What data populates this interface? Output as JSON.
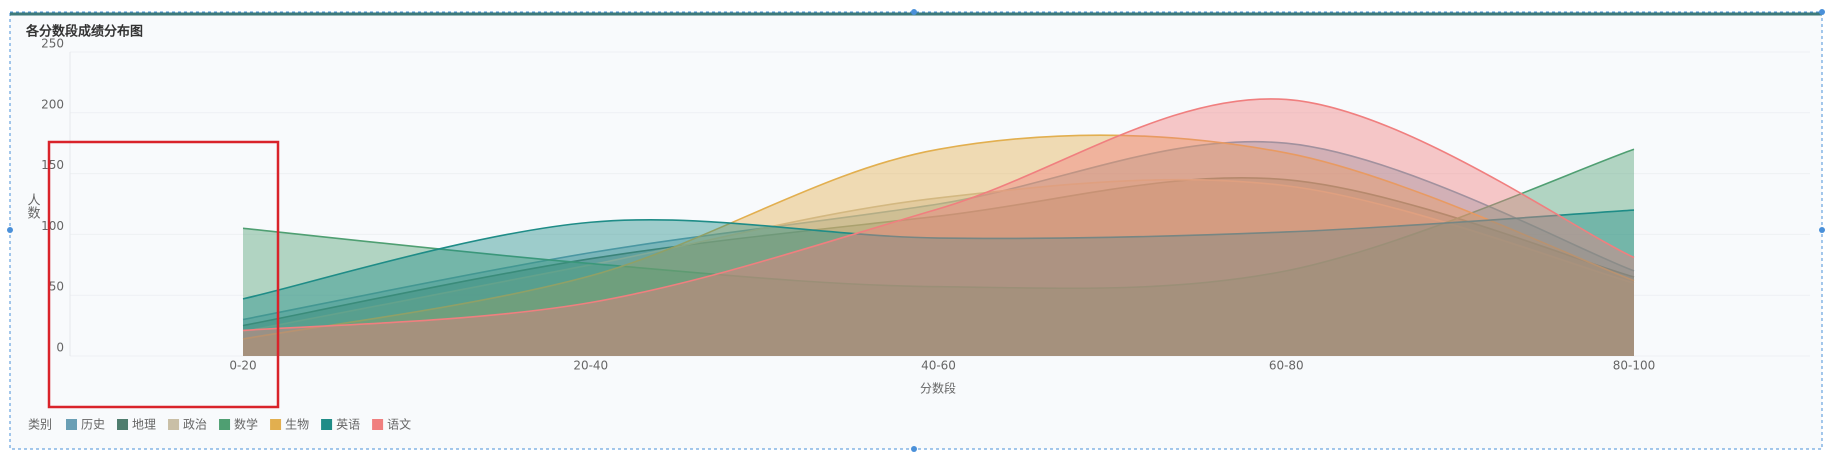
{
  "chart_data": {
    "type": "area",
    "title": "各分数段成绩分布图",
    "x_label": "分数段",
    "y_label": "人数",
    "legend_title": "类别",
    "categories": [
      "0-20",
      "20-40",
      "40-60",
      "60-80",
      "80-100"
    ],
    "series": [
      {
        "name": "历史",
        "color": "#6a9fb5",
        "values": [
          30,
          85,
          125,
          175,
          70
        ]
      },
      {
        "name": "地理",
        "color": "#4e7d6e",
        "values": [
          25,
          80,
          115,
          145,
          65
        ]
      },
      {
        "name": "政治",
        "color": "#c9bfa6",
        "values": [
          20,
          75,
          130,
          140,
          60
        ]
      },
      {
        "name": "数学",
        "color": "#4f9f72",
        "values": [
          105,
          76,
          57,
          70,
          170
        ]
      },
      {
        "name": "生物",
        "color": "#e2af4f",
        "values": [
          14,
          66,
          170,
          167,
          62
        ]
      },
      {
        "name": "英语",
        "color": "#1f8c87",
        "values": [
          47,
          110,
          97,
          102,
          120
        ]
      },
      {
        "name": "语文",
        "color": "#f07f7f",
        "values": [
          21,
          44,
          121,
          211,
          81
        ]
      }
    ],
    "ylim": [
      0,
      250
    ],
    "yticks": [
      0,
      50,
      100,
      150,
      200,
      250
    ],
    "grid": true
  }
}
